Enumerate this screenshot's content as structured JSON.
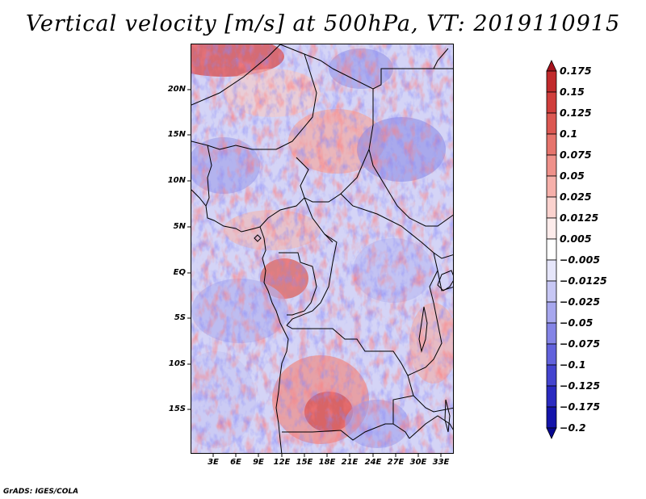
{
  "title": "Vertical velocity [m/s] at 500hPa, VT: 2019110915",
  "credit": "GrADS: IGES/COLA",
  "map": {
    "lat_labels": [
      "20N",
      "15N",
      "10N",
      "5N",
      "EQ",
      "5S",
      "10S",
      "15S"
    ],
    "lon_labels": [
      "3E",
      "6E",
      "9E",
      "12E",
      "15E",
      "18E",
      "21E",
      "24E",
      "27E",
      "30E",
      "33E"
    ]
  },
  "colorbar": {
    "labels": [
      "0.175",
      "0.15",
      "0.125",
      "0.1",
      "0.075",
      "0.05",
      "0.025",
      "0.0125",
      "0.005",
      "−0.005",
      "−0.0125",
      "−0.025",
      "−0.05",
      "−0.075",
      "−0.1",
      "−0.125",
      "−0.175",
      "−0.2"
    ],
    "colors": [
      "#a5121c",
      "#c12a2c",
      "#d03e3c",
      "#dc5852",
      "#e6746c",
      "#ef918a",
      "#f6b0aa",
      "#fbd2ce",
      "#fdeceb",
      "#ffffff",
      "#e6e6fa",
      "#c7c7f4",
      "#a7a7ee",
      "#8484e6",
      "#6262dc",
      "#4444cf",
      "#2a2ac0",
      "#1414aa",
      "#070790"
    ]
  }
}
